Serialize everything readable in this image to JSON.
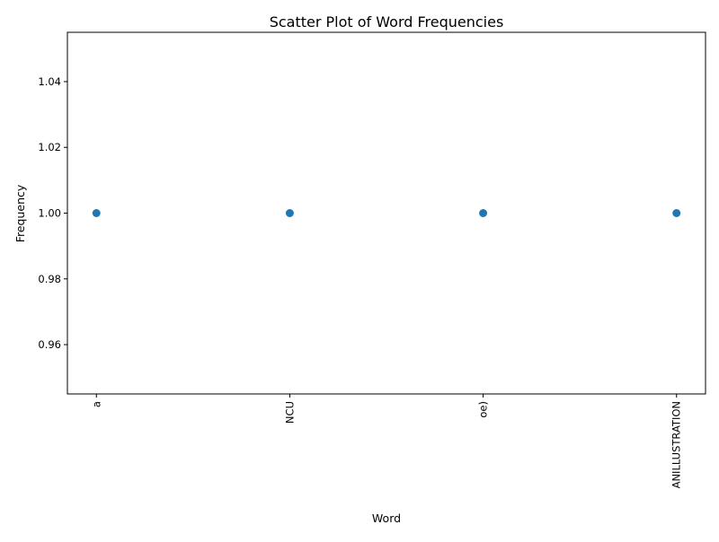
{
  "chart_data": {
    "type": "scatter",
    "title": "Scatter Plot of Word Frequencies",
    "xlabel": "Word",
    "ylabel": "Frequency",
    "categories": [
      "a",
      "NCU",
      "oe)",
      "ANILLUSTRATION"
    ],
    "values": [
      1,
      1,
      1,
      1
    ],
    "ylim": [
      0.945,
      1.055
    ],
    "yticks": [
      0.96,
      0.98,
      1.0,
      1.02,
      1.04
    ],
    "ytick_labels": [
      "0.96",
      "0.98",
      "1.00",
      "1.02",
      "1.04"
    ],
    "x_tick_rotation": "vertical",
    "grid": false,
    "legend": "none",
    "marker_color": "#1f77b4"
  }
}
